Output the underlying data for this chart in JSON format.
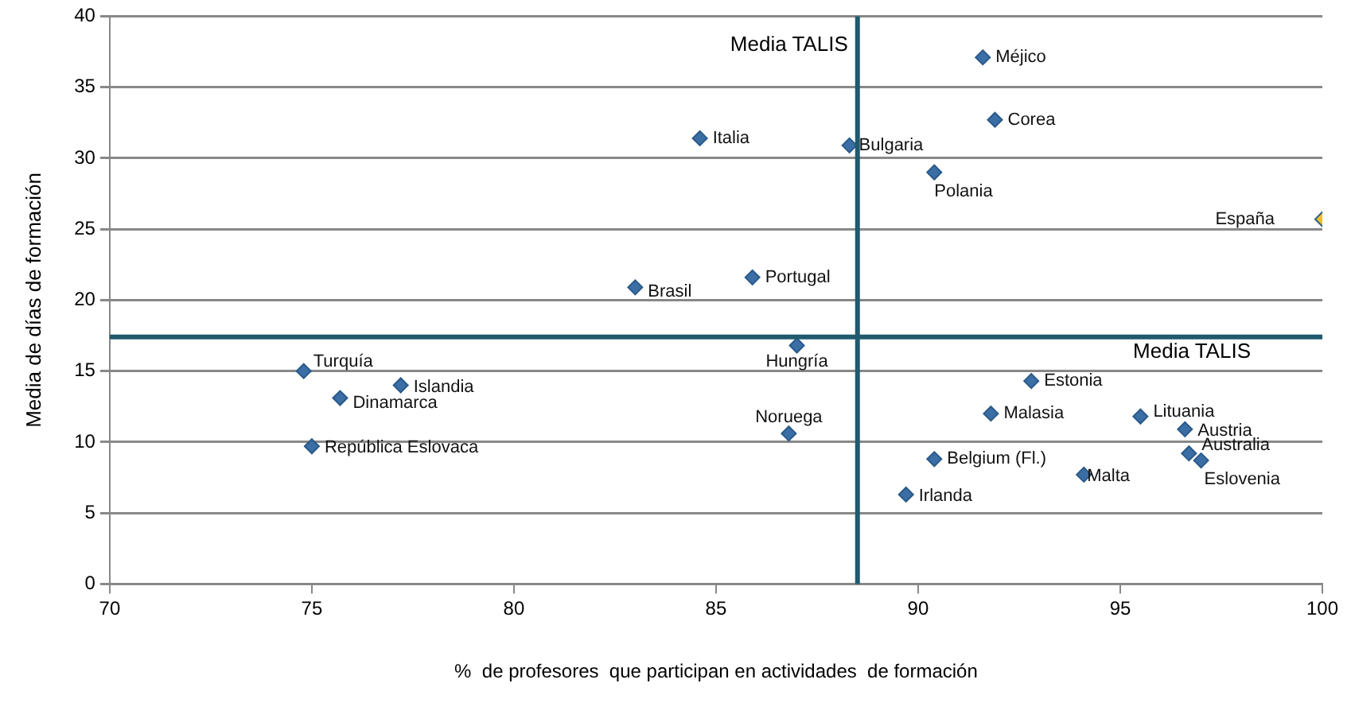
{
  "chart_data": {
    "type": "scatter",
    "xlabel": "%  de profesores  que participan en actividades  de formación",
    "ylabel": "Media de días de formación",
    "xlim": [
      70,
      100
    ],
    "xticks": [
      70,
      75,
      80,
      85,
      90,
      95,
      100
    ],
    "ylim": [
      0,
      40
    ],
    "yticks": [
      0,
      5,
      10,
      15,
      20,
      25,
      30,
      35,
      40
    ],
    "grid": "y",
    "marker": "diamond",
    "legend": false,
    "series": [
      {
        "color": "#3a6ea5",
        "x": [
          91.6,
          91.9,
          84.6,
          88.3,
          90.4,
          85.9,
          83.0,
          87.0,
          74.8,
          77.2,
          75.7,
          75.0,
          92.8,
          91.8,
          95.5,
          96.6,
          86.8,
          90.4,
          96.7,
          97.0,
          94.1,
          89.7
        ],
        "values": [
          37.1,
          32.7,
          31.4,
          30.9,
          29.0,
          21.6,
          20.9,
          16.8,
          15.0,
          14.0,
          13.1,
          9.7,
          14.3,
          12.0,
          11.8,
          10.9,
          10.6,
          8.8,
          9.2,
          8.7,
          7.7,
          6.3
        ]
      },
      {
        "color": "#f0c020",
        "x": [
          100.0
        ],
        "values": [
          25.7
        ]
      }
    ],
    "ref_lines": [
      {
        "axis": "x",
        "value": 88.5,
        "label": "Media TALIS",
        "color": "#1f5a6e"
      },
      {
        "axis": "y",
        "value": 17.4,
        "label": "Media TALIS",
        "color": "#1f5a6e"
      }
    ],
    "annotations": [
      {
        "text": "Méjico",
        "x": 91.6,
        "y": 37.1
      },
      {
        "text": "Corea",
        "x": 91.9,
        "y": 32.7
      },
      {
        "text": "Italia",
        "x": 84.6,
        "y": 31.4
      },
      {
        "text": "Bulgaria",
        "x": 88.3,
        "y": 30.9
      },
      {
        "text": "Polania",
        "x": 90.4,
        "y": 29.0
      },
      {
        "text": "Portugal",
        "x": 85.9,
        "y": 21.6
      },
      {
        "text": "Brasil",
        "x": 83.0,
        "y": 20.9
      },
      {
        "text": "Hungría",
        "x": 87.0,
        "y": 16.8
      },
      {
        "text": "Turquía",
        "x": 74.8,
        "y": 15.0
      },
      {
        "text": "Islandia",
        "x": 77.2,
        "y": 14.0
      },
      {
        "text": "Dinamarca",
        "x": 75.7,
        "y": 13.1
      },
      {
        "text": "República Eslovaca",
        "x": 75.0,
        "y": 9.7
      },
      {
        "text": "Estonia",
        "x": 92.8,
        "y": 14.3
      },
      {
        "text": "Malasia",
        "x": 91.8,
        "y": 12.0
      },
      {
        "text": "Lituania",
        "x": 95.5,
        "y": 11.8
      },
      {
        "text": "Austria",
        "x": 96.6,
        "y": 10.9
      },
      {
        "text": "Noruega",
        "x": 86.8,
        "y": 10.6
      },
      {
        "text": "Belgium (Fl.)",
        "x": 90.4,
        "y": 8.8
      },
      {
        "text": "Australia",
        "x": 96.7,
        "y": 9.2
      },
      {
        "text": "Eslovenia",
        "x": 97.0,
        "y": 8.7
      },
      {
        "text": "Malta",
        "x": 94.1,
        "y": 7.7
      },
      {
        "text": "Irlanda",
        "x": 89.7,
        "y": 6.3
      },
      {
        "text": "España",
        "x": 100.0,
        "y": 25.7
      }
    ]
  }
}
